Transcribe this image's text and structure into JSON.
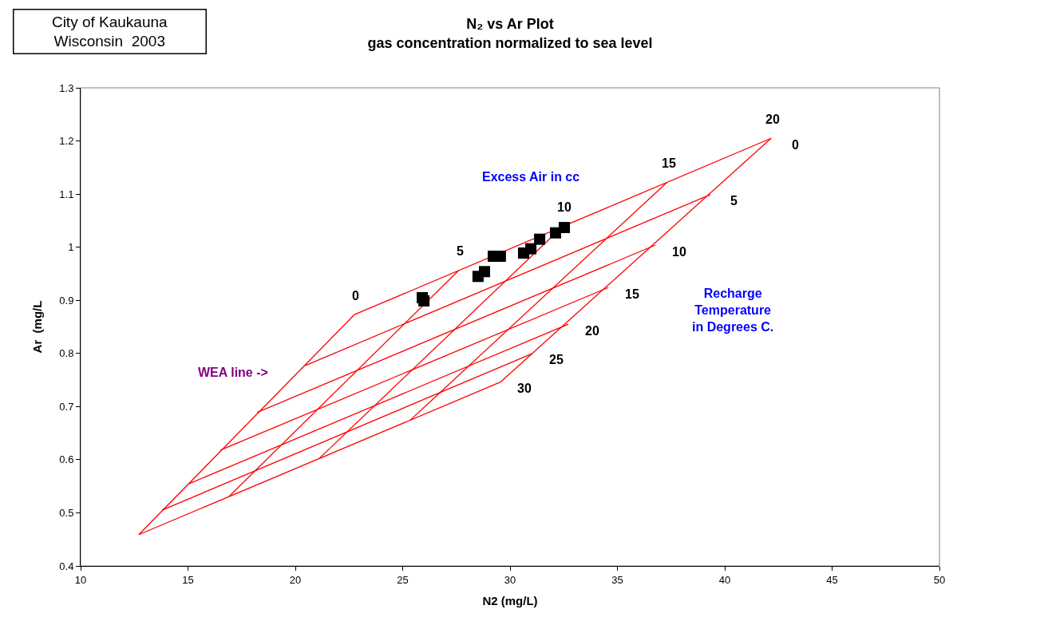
{
  "chart_data": {
    "type": "line",
    "title": "N₂ vs Ar Plot",
    "subtitle": "gas concentration normalized to sea level",
    "xlabel": "N2 (mg/L)",
    "ylabel": "Ar  (mg/L",
    "xlim": [
      10,
      50
    ],
    "xticks": [
      10,
      15,
      20,
      25,
      30,
      35,
      40,
      45,
      50
    ],
    "ylim": [
      0.4,
      1.3
    ],
    "yticks": [
      0.4,
      0.5,
      0.6,
      0.7,
      0.8,
      0.9,
      1,
      1.1,
      1.2,
      1.3
    ],
    "grid": false,
    "marker": "none",
    "line_style": "solid",
    "series": [
      {
        "color": "#ff0000",
        "x": [
          22.75,
          42.16,
          null,
          20.45,
          39.33,
          null,
          18.22,
          36.77,
          null,
          16.51,
          34.57,
          null,
          15.06,
          32.71,
          null,
          13.79,
          31.04,
          null,
          12.71,
          29.55,
          null,
          22.75,
          12.71,
          null,
          27.6,
          16.92,
          null,
          32.45,
          21.13,
          null,
          37.31,
          25.34,
          null,
          42.16,
          29.55
        ],
        "values": [
          0.873,
          1.205,
          null,
          0.777,
          1.099,
          null,
          0.689,
          1.004,
          null,
          0.618,
          0.924,
          null,
          0.555,
          0.855,
          null,
          0.505,
          0.8,
          null,
          0.459,
          0.746,
          null,
          0.873,
          0.459,
          null,
          0.956,
          0.531,
          null,
          1.039,
          0.603,
          null,
          1.122,
          0.674,
          null,
          1.205,
          0.746
        ]
      },
      {
        "type": "scatter",
        "marker": "square",
        "color": "#000000",
        "x": [
          25.91,
          25.99,
          28.51,
          28.81,
          29.22,
          29.55,
          30.63,
          30.97,
          31.38,
          32.12,
          32.53
        ],
        "values": [
          0.905,
          0.899,
          0.945,
          0.954,
          0.983,
          0.983,
          0.989,
          0.997,
          1.015,
          1.027,
          1.037
        ]
      }
    ],
    "annotations": [
      "City of Kaukauna\nWisconsin  2003",
      "Excess Air in cc",
      "Recharge\nTemperature\nin Degrees C.",
      "WEA line ->",
      {
        "text": "0",
        "x": 22.75,
        "y": 0.873
      },
      {
        "text": "5",
        "x": 27.6,
        "y": 0.956
      },
      {
        "text": "10",
        "x": 32.45,
        "y": 1.039
      },
      {
        "text": "15",
        "x": 37.31,
        "y": 1.122
      },
      {
        "text": "20",
        "x": 42.16,
        "y": 1.205
      },
      {
        "text": "0",
        "x": 42.16,
        "y": 1.205
      },
      {
        "text": "5",
        "x": 39.33,
        "y": 1.099
      },
      {
        "text": "10",
        "x": 36.77,
        "y": 1.004
      },
      {
        "text": "15",
        "x": 34.57,
        "y": 0.924
      },
      {
        "text": "20",
        "x": 32.71,
        "y": 0.855
      },
      {
        "text": "25",
        "x": 31.04,
        "y": 0.8
      },
      {
        "text": "30",
        "x": 29.55,
        "y": 0.746
      }
    ]
  }
}
